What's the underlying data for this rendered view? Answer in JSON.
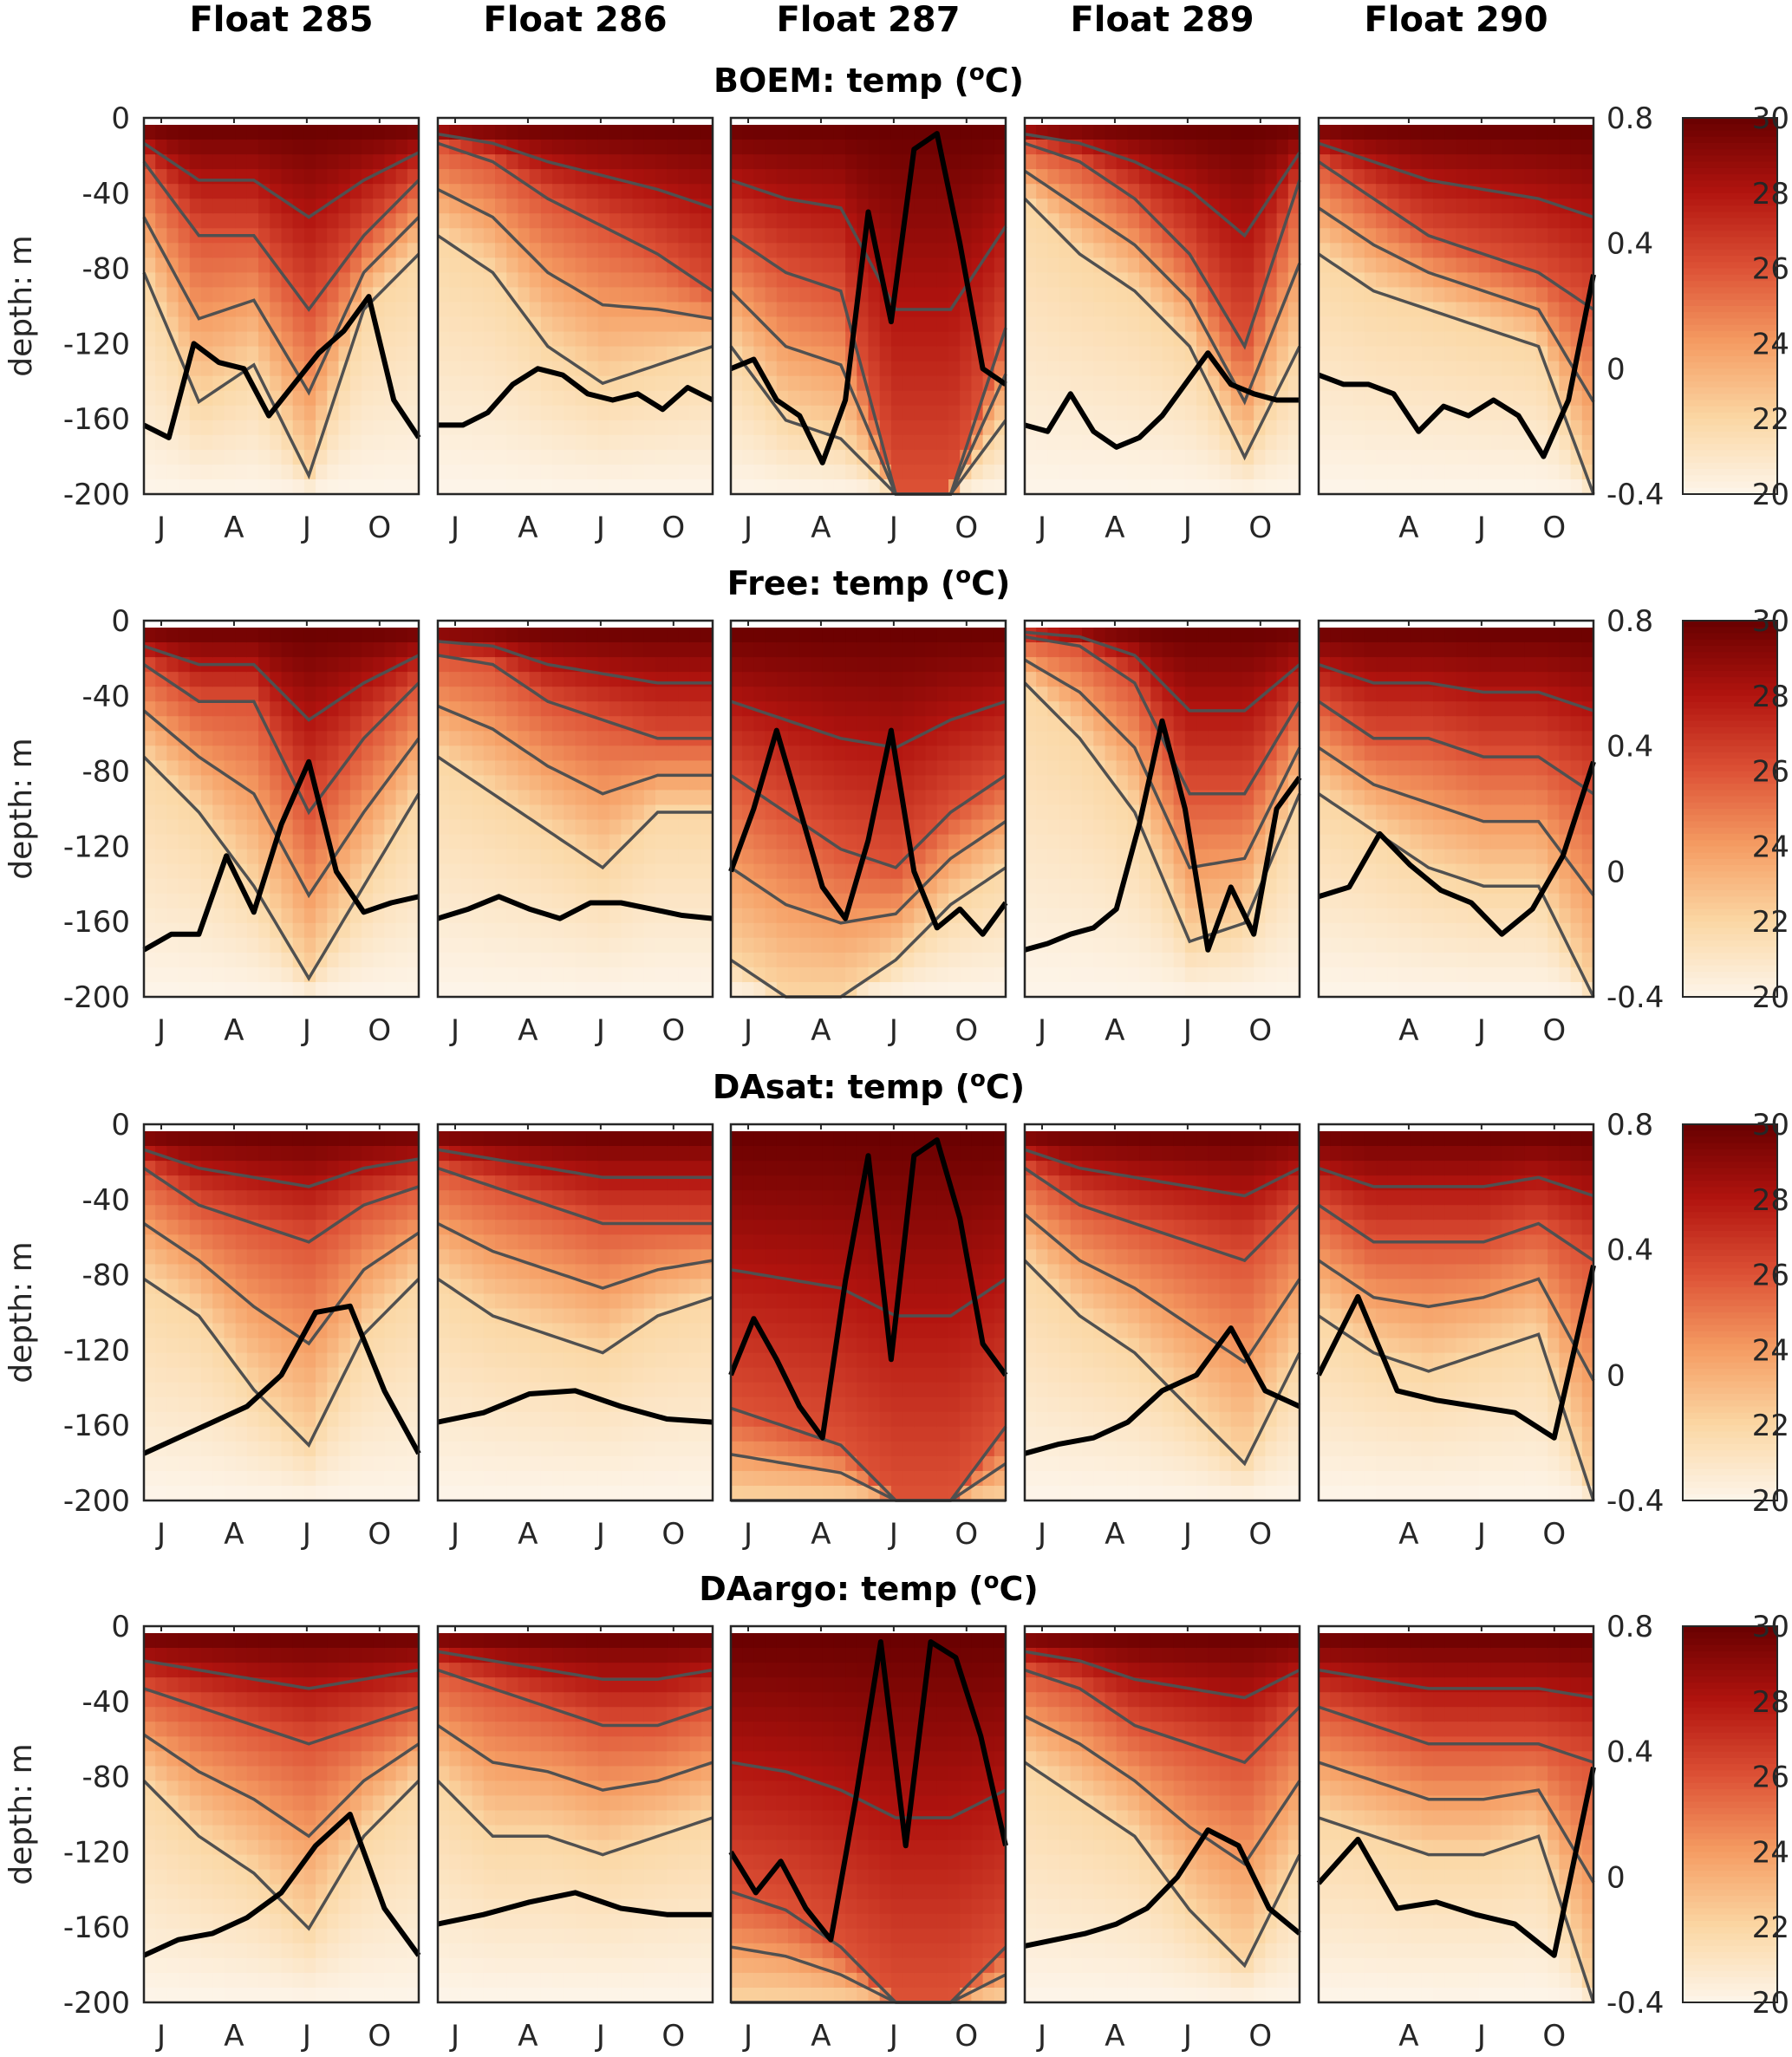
{
  "chart_data": {
    "type": "heatmap",
    "columns": [
      "Float 285",
      "Float 286",
      "Float 287",
      "Float 289",
      "Float 290"
    ],
    "variable": "temp",
    "unit_sup": "o",
    "unit": "C",
    "ylabel": "depth: m",
    "ylim": [
      -200,
      0
    ],
    "yticks": [
      "0",
      "-40",
      "-80",
      "-120",
      "-160",
      "-200"
    ],
    "xticks": [
      [
        "J",
        "A",
        "J",
        "O"
      ],
      [
        "J",
        "A",
        "J",
        "O"
      ],
      [
        "J",
        "A",
        "J",
        "O"
      ],
      [
        "J",
        "A",
        "J",
        "O"
      ],
      [
        "A",
        "J",
        "O"
      ]
    ],
    "right_axis": {
      "ylim": [
        -0.4,
        0.8
      ],
      "ticks": [
        "0.8",
        "0.4",
        "0",
        "-0.4"
      ]
    },
    "colorbar": {
      "range": [
        20,
        30
      ],
      "ticks": [
        "30",
        "28",
        "26",
        "24",
        "22",
        "20"
      ],
      "colors": [
        "#fdf5ea",
        "#fbd7a4",
        "#f59d63",
        "#dd5236",
        "#b2140f",
        "#680000"
      ]
    },
    "contour_levels_C": [
      28,
      26,
      24,
      22
    ],
    "contour_color": "#505050",
    "line_color": "#000000",
    "rows": [
      {
        "label": "BOEM",
        "panels": [
          {
            "line": [
              -0.18,
              -0.22,
              0.08,
              0.02,
              0.0,
              -0.15,
              -0.05,
              0.05,
              0.12,
              0.23,
              -0.1,
              -0.22
            ],
            "isotherm_26C_depth_m": [
              20,
              60,
              60,
              100,
              60,
              30
            ],
            "isotherm_22C_depth_m": [
              80,
              150,
              130,
              190,
              100,
              70
            ]
          },
          {
            "line": [
              -0.18,
              -0.18,
              -0.14,
              -0.05,
              0,
              -0.02,
              -0.08,
              -0.1,
              -0.08,
              -0.13,
              -0.06,
              -0.1
            ],
            "isotherm_26C_depth_m": [
              10,
              20,
              40,
              55,
              70,
              90
            ],
            "isotherm_22C_depth_m": [
              60,
              80,
              120,
              140,
              130,
              120
            ]
          },
          {
            "line": [
              0,
              0.03,
              -0.1,
              -0.15,
              -0.3,
              -0.1,
              0.5,
              0.15,
              0.7,
              0.75,
              0.4,
              0.0,
              -0.05
            ],
            "isotherm_26C_depth_m": [
              60,
              80,
              90,
              200,
              200,
              110
            ],
            "isotherm_22C_depth_m": [
              120,
              160,
              170,
              200,
              200,
              160
            ]
          },
          {
            "line": [
              -0.18,
              -0.2,
              -0.08,
              -0.2,
              -0.25,
              -0.22,
              -0.15,
              -0.05,
              0.05,
              -0.05,
              -0.08,
              -0.1,
              -0.1
            ],
            "isotherm_26C_depth_m": [
              10,
              20,
              40,
              70,
              120,
              30
            ],
            "isotherm_22C_depth_m": [
              40,
              70,
              90,
              120,
              180,
              120
            ]
          },
          {
            "line": [
              -0.02,
              -0.05,
              -0.05,
              -0.08,
              -0.2,
              -0.12,
              -0.15,
              -0.1,
              -0.15,
              -0.28,
              -0.1,
              0.3
            ],
            "isotherm_26C_depth_m": [
              20,
              40,
              60,
              70,
              80,
              100
            ],
            "isotherm_22C_depth_m": [
              70,
              90,
              100,
              110,
              120,
              200
            ]
          }
        ]
      },
      {
        "label": "Free",
        "panels": [
          {
            "line": [
              -0.25,
              -0.2,
              -0.2,
              0.05,
              -0.13,
              0.15,
              0.35,
              0.0,
              -0.13,
              -0.1,
              -0.08
            ],
            "isotherm_26C_depth_m": [
              20,
              40,
              40,
              100,
              60,
              30
            ],
            "isotherm_22C_depth_m": [
              70,
              100,
              140,
              190,
              140,
              90
            ]
          },
          {
            "line": [
              -0.15,
              -0.12,
              -0.08,
              -0.12,
              -0.15,
              -0.1,
              -0.1,
              -0.12,
              -0.14,
              -0.15
            ],
            "isotherm_26C_depth_m": [
              15,
              20,
              40,
              50,
              60,
              60
            ],
            "isotherm_22C_depth_m": [
              70,
              90,
              110,
              130,
              100,
              100
            ]
          },
          {
            "line": [
              0,
              0.2,
              0.45,
              0.2,
              -0.05,
              -0.15,
              0.1,
              0.45,
              0.0,
              -0.18,
              -0.12,
              -0.2,
              -0.1
            ],
            "isotherm_26C_depth_m": [
              80,
              100,
              120,
              130,
              100,
              80
            ],
            "isotherm_22C_depth_m": [
              180,
              200,
              200,
              180,
              150,
              130
            ]
          },
          {
            "line": [
              -0.25,
              -0.23,
              -0.2,
              -0.18,
              -0.12,
              0.15,
              0.48,
              0.2,
              -0.25,
              -0.05,
              -0.2,
              0.2,
              0.3
            ],
            "isotherm_26C_depth_m": [
              5,
              10,
              30,
              90,
              90,
              40
            ],
            "isotherm_22C_depth_m": [
              30,
              60,
              100,
              170,
              160,
              90
            ]
          },
          {
            "line": [
              -0.08,
              -0.05,
              0.12,
              0.02,
              -0.06,
              -0.1,
              -0.2,
              -0.12,
              0.05,
              0.35
            ],
            "isotherm_26C_depth_m": [
              40,
              60,
              60,
              70,
              70,
              90
            ],
            "isotherm_22C_depth_m": [
              90,
              110,
              130,
              140,
              140,
              200
            ]
          }
        ]
      },
      {
        "label": "DAsat",
        "panels": [
          {
            "line": [
              -0.25,
              -0.2,
              -0.15,
              -0.1,
              0.0,
              0.2,
              0.22,
              -0.05,
              -0.25
            ],
            "isotherm_26C_depth_m": [
              20,
              40,
              50,
              60,
              40,
              30
            ],
            "isotherm_22C_depth_m": [
              80,
              100,
              140,
              170,
              110,
              80
            ]
          },
          {
            "line": [
              -0.15,
              -0.12,
              -0.06,
              -0.05,
              -0.1,
              -0.14,
              -0.15
            ],
            "isotherm_26C_depth_m": [
              20,
              30,
              40,
              50,
              50,
              50
            ],
            "isotherm_22C_depth_m": [
              80,
              100,
              110,
              120,
              100,
              90
            ]
          },
          {
            "line": [
              0,
              0.18,
              0.05,
              -0.1,
              -0.2,
              0.3,
              0.7,
              0.05,
              0.7,
              0.75,
              0.5,
              0.1,
              0.0
            ],
            "isotherm_26C_depth_m": [
              150,
              160,
              170,
              200,
              200,
              160
            ],
            "isotherm_22C_depth_m": [
              200,
              200,
              200,
              200,
              200,
              200
            ]
          },
          {
            "line": [
              -0.25,
              -0.22,
              -0.2,
              -0.15,
              -0.05,
              0,
              0.15,
              -0.05,
              -0.1
            ],
            "isotherm_26C_depth_m": [
              20,
              40,
              50,
              60,
              70,
              40
            ],
            "isotherm_22C_depth_m": [
              70,
              100,
              120,
              150,
              180,
              120
            ]
          },
          {
            "line": [
              0,
              0.25,
              -0.05,
              -0.08,
              -0.1,
              -0.12,
              -0.2,
              0.35
            ],
            "isotherm_26C_depth_m": [
              40,
              60,
              60,
              60,
              50,
              70
            ],
            "isotherm_22C_depth_m": [
              100,
              120,
              130,
              120,
              110,
              200
            ]
          }
        ]
      },
      {
        "label": "DAargo",
        "panels": [
          {
            "line": [
              -0.25,
              -0.2,
              -0.18,
              -0.13,
              -0.05,
              0.1,
              0.2,
              -0.1,
              -0.25
            ],
            "isotherm_26C_depth_m": [
              30,
              40,
              50,
              60,
              50,
              40
            ],
            "isotherm_22C_depth_m": [
              80,
              110,
              130,
              160,
              110,
              80
            ]
          },
          {
            "line": [
              -0.15,
              -0.12,
              -0.08,
              -0.05,
              -0.1,
              -0.12,
              -0.12
            ],
            "isotherm_26C_depth_m": [
              20,
              30,
              40,
              50,
              50,
              40
            ],
            "isotherm_22C_depth_m": [
              80,
              110,
              110,
              120,
              110,
              100
            ]
          },
          {
            "line": [
              0.08,
              -0.05,
              0.05,
              -0.1,
              -0.2,
              0.25,
              0.75,
              0.1,
              0.75,
              0.7,
              0.45,
              0.1
            ],
            "isotherm_26C_depth_m": [
              140,
              150,
              170,
              200,
              200,
              170
            ],
            "isotherm_22C_depth_m": [
              200,
              200,
              200,
              200,
              200,
              200
            ]
          },
          {
            "line": [
              -0.22,
              -0.2,
              -0.18,
              -0.15,
              -0.1,
              0,
              0.15,
              0.1,
              -0.1,
              -0.18
            ],
            "isotherm_26C_depth_m": [
              20,
              30,
              50,
              60,
              70,
              40
            ],
            "isotherm_22C_depth_m": [
              70,
              90,
              110,
              150,
              180,
              120
            ]
          },
          {
            "line": [
              -0.02,
              0.12,
              -0.1,
              -0.08,
              -0.12,
              -0.15,
              -0.25,
              0.35
            ],
            "isotherm_26C_depth_m": [
              40,
              50,
              60,
              60,
              60,
              70
            ],
            "isotherm_22C_depth_m": [
              100,
              110,
              120,
              120,
              110,
              200
            ]
          }
        ]
      }
    ]
  }
}
